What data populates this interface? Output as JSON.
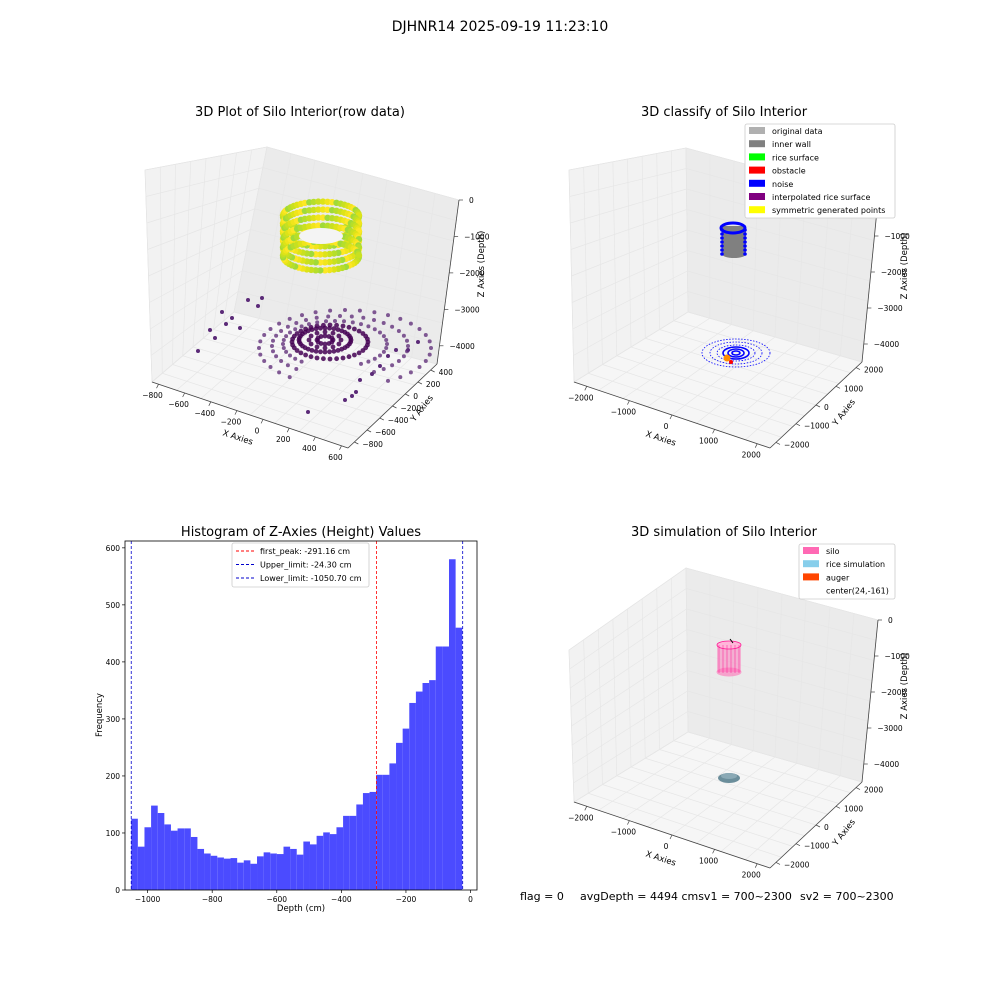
{
  "figure": {
    "suptitle": "DJHNR14 2025-09-19 11:23:10",
    "footer": {
      "flag": "flag = 0",
      "avg": "avgDepth = 4494 cmsv1 = 700~2300",
      "sv2": "sv2 = 700~2300"
    }
  },
  "colors": {
    "hist_bar": "#4b4bff",
    "red_line": "#ff0000",
    "blue_line": "#0000cc",
    "grid": "#e6e6e6",
    "pane_left": "#f2f2f2",
    "pane_right": "#ebebeb",
    "pane_floor": "#f6f6f6"
  },
  "chart_data": [
    {
      "id": "raw",
      "type": "scatter3d",
      "title": "3D Plot of Silo Interior(row data)",
      "xlabel": "X Axies",
      "ylabel": "Y Axies",
      "zlabel": "Z Axies (Depth)",
      "xticks": [
        "−800",
        "−600",
        "−400",
        "−200",
        "0",
        "200",
        "400",
        "600"
      ],
      "yticks": [
        "−800",
        "−600",
        "−400",
        "−200",
        "0",
        "200",
        "400"
      ],
      "zticks": [
        "0",
        "−1000",
        "−2000",
        "−3000",
        "−4000"
      ],
      "xlim": [
        -850,
        650
      ],
      "ylim": [
        -900,
        500
      ],
      "zlim": [
        -4500,
        0
      ]
    },
    {
      "id": "classify",
      "type": "scatter3d",
      "title": "3D classify of Silo Interior",
      "xlabel": "X Axies",
      "ylabel": "Y Axies",
      "zlabel": "Z Axies (Depth)",
      "xticks": [
        "−2000",
        "−1000",
        "0",
        "1000",
        "2000"
      ],
      "yticks": [
        "−2000",
        "−1000",
        "0",
        "1000",
        "2000"
      ],
      "zticks": [
        "−1000",
        "−2000",
        "−3000",
        "−4000"
      ],
      "xlim": [
        -2300,
        2300
      ],
      "ylim": [
        -2300,
        2300
      ],
      "zlim": [
        -4500,
        0
      ],
      "legend": [
        {
          "label": "original data",
          "color": "#b0b0b0"
        },
        {
          "label": "inner wall",
          "color": "#808080"
        },
        {
          "label": "rice surface",
          "color": "#00ff00"
        },
        {
          "label": "obstacle",
          "color": "#ff0000"
        },
        {
          "label": "noise",
          "color": "#0000ff"
        },
        {
          "label": "interpolated rice surface",
          "color": "#800080"
        },
        {
          "label": "symmetric generated points",
          "color": "#ffff00"
        }
      ]
    },
    {
      "id": "hist",
      "type": "histogram",
      "title": "Histogram of Z-Axies (Height) Values",
      "xlabel": "Depth (cm)",
      "ylabel": "Frequency",
      "xlim": [
        -1070,
        20
      ],
      "ylim": [
        0,
        612
      ],
      "xticks": [
        -1000,
        -800,
        -600,
        -400,
        -200,
        0
      ],
      "yticks": [
        0,
        100,
        200,
        300,
        400,
        500,
        600
      ],
      "bin_start": -1050.7,
      "bin_width": 20.5,
      "values": [
        125,
        76,
        110,
        148,
        135,
        115,
        104,
        108,
        108,
        93,
        72,
        64,
        60,
        57,
        55,
        56,
        48,
        52,
        46,
        59,
        66,
        64,
        63,
        76,
        72,
        62,
        85,
        80,
        95,
        101,
        98,
        110,
        130,
        130,
        150,
        170,
        172,
        202,
        202,
        222,
        258,
        283,
        328,
        348,
        363,
        368,
        427,
        427,
        580,
        460
      ],
      "lines": [
        {
          "label": "first_peak: -291.16 cm",
          "x": -291.16,
          "color": "#ff0000"
        },
        {
          "label": "Upper_limit: -24.30 cm",
          "x": -24.3,
          "color": "#0000cc"
        },
        {
          "label": "Lower_limit: -1050.70 cm",
          "x": -1050.7,
          "color": "#0000cc"
        }
      ]
    },
    {
      "id": "sim",
      "type": "scatter3d",
      "title": "3D simulation of Silo Interior",
      "xlabel": "X Axies",
      "ylabel": "Y Axies",
      "zlabel": "Z Axies (Depth)",
      "xticks": [
        "−2000",
        "−1000",
        "0",
        "1000",
        "2000"
      ],
      "yticks": [
        "−2000",
        "−1000",
        "0",
        "1000",
        "2000"
      ],
      "zticks": [
        "0",
        "−1000",
        "−2000",
        "−3000",
        "−4000"
      ],
      "xlim": [
        -2300,
        2300
      ],
      "ylim": [
        -2300,
        2300
      ],
      "zlim": [
        -4500,
        0
      ],
      "legend": [
        {
          "label": "silo",
          "color": "#ff69b4"
        },
        {
          "label": "rice simulation",
          "color": "#87ceeb"
        },
        {
          "label": "auger",
          "color": "#ff4500"
        },
        {
          "label": "center(24,-161)",
          "color": ""
        }
      ]
    }
  ]
}
